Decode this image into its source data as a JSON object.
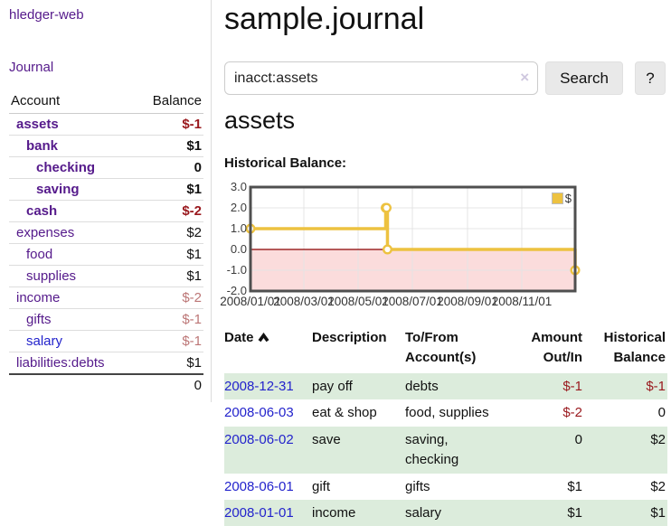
{
  "app": {
    "title": "hledger-web",
    "nav_journal": "Journal"
  },
  "sidebar": {
    "table_headers": {
      "account": "Account",
      "balance": "Balance"
    },
    "accounts": [
      {
        "label": "assets",
        "balance": "$-1",
        "level": 1,
        "bold": true,
        "muted": false,
        "unvisited": false
      },
      {
        "label": "bank",
        "balance": "$1",
        "level": 2,
        "bold": true,
        "muted": false,
        "unvisited": false
      },
      {
        "label": "checking",
        "balance": "0",
        "level": 3,
        "bold": true,
        "muted": false,
        "unvisited": false
      },
      {
        "label": "saving",
        "balance": "$1",
        "level": 3,
        "bold": true,
        "muted": false,
        "unvisited": false
      },
      {
        "label": "cash",
        "balance": "$-2",
        "level": 2,
        "bold": true,
        "muted": false,
        "unvisited": false
      },
      {
        "label": "expenses",
        "balance": "$2",
        "level": 1,
        "bold": false,
        "muted": false,
        "unvisited": false
      },
      {
        "label": "food",
        "balance": "$1",
        "level": 2,
        "bold": false,
        "muted": false,
        "unvisited": false
      },
      {
        "label": "supplies",
        "balance": "$1",
        "level": 2,
        "bold": false,
        "muted": false,
        "unvisited": false
      },
      {
        "label": "income",
        "balance": "$-2",
        "level": 1,
        "bold": false,
        "muted": true,
        "unvisited": false
      },
      {
        "label": "gifts",
        "balance": "$-1",
        "level": 2,
        "bold": false,
        "muted": true,
        "unvisited": false
      },
      {
        "label": "salary",
        "balance": "$-1",
        "level": 2,
        "bold": false,
        "muted": true,
        "unvisited": true
      },
      {
        "label": "liabilities:debts",
        "balance": "$1",
        "level": 1,
        "bold": false,
        "muted": false,
        "unvisited": false
      }
    ],
    "total": "0"
  },
  "header": {
    "journal_title": "sample.journal",
    "account_title": "assets"
  },
  "search": {
    "value": "inacct:assets",
    "clear_icon": "×",
    "button_label": "Search",
    "help_label": "?"
  },
  "chart_label": "Historical Balance:",
  "chart_data": {
    "type": "line",
    "subtype": "step",
    "title": "Historical Balance:",
    "series": [
      {
        "name": "$",
        "points": [
          {
            "date": "2008/01/01",
            "value": 1
          },
          {
            "date": "2008/06/01",
            "value": 2
          },
          {
            "date": "2008/06/02",
            "value": 2
          },
          {
            "date": "2008/06/03",
            "value": 0
          },
          {
            "date": "2008/12/31",
            "value": -1
          }
        ]
      }
    ],
    "ylim": [
      -2,
      3
    ],
    "yticks": [
      "3.0",
      "2.0",
      "1.0",
      "0.0",
      "-1.0",
      "-2.0"
    ],
    "xticks": [
      {
        "label": "2008/01/01",
        "date": "2008/01/01"
      },
      {
        "label": "2008/03/01",
        "date": "2008/03/01"
      },
      {
        "label": "2008/05/01",
        "date": "2008/05/01"
      },
      {
        "label": "2008/07/01",
        "date": "2008/07/01"
      },
      {
        "label": "2008/09/01",
        "date": "2008/09/01"
      },
      {
        "label": "2008/11/01",
        "date": "2008/11/01"
      }
    ],
    "legend": {
      "position": "top-right",
      "entries": [
        "$"
      ]
    },
    "grid": true,
    "colors": {
      "series": "#edc240",
      "negative_fill": "#fbdcdc",
      "zero_line": "#8b0000",
      "border": "#4f4f4f",
      "gridline": "#e4e4e4"
    }
  },
  "register": {
    "headers": {
      "date": "Date",
      "description": "Description",
      "accounts": "To/From Account(s)",
      "amount": "Amount Out/In",
      "balance": "Historical Balance"
    },
    "rows": [
      {
        "date": "2008-12-31",
        "description": "pay off",
        "accounts": "debts",
        "amount": "$-1",
        "balance": "$-1"
      },
      {
        "date": "2008-06-03",
        "description": "eat & shop",
        "accounts": "food, supplies",
        "amount": "$-2",
        "balance": "0"
      },
      {
        "date": "2008-06-02",
        "description": "save",
        "accounts": "saving,\nchecking",
        "amount": "0",
        "balance": "$2"
      },
      {
        "date": "2008-06-01",
        "description": "gift",
        "accounts": "gifts",
        "amount": "$1",
        "balance": "$2"
      },
      {
        "date": "2008-01-01",
        "description": "income",
        "accounts": "salary",
        "amount": "$1",
        "balance": "$1"
      }
    ]
  }
}
